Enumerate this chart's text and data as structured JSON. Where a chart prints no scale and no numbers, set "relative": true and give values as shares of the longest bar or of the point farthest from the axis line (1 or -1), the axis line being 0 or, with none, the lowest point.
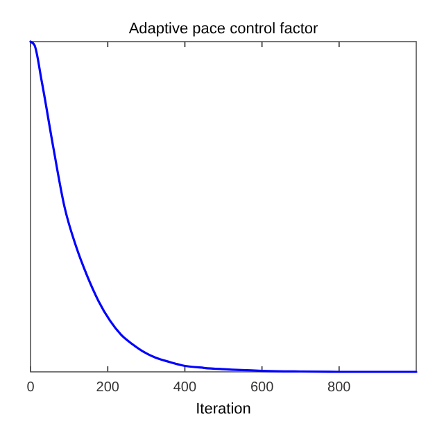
{
  "chart_data": {
    "type": "line",
    "title": "Adaptive pace control factor",
    "xlabel": "Iteration",
    "relative": true,
    "xlim": [
      0,
      1000
    ],
    "xticks": [
      0,
      200,
      400,
      600,
      800
    ],
    "series": [
      {
        "color": "#0000ff",
        "x": [
          0,
          10,
          29,
          59,
          88,
          118,
          147,
          176,
          206,
          235,
          265,
          294,
          324,
          360,
          392,
          450,
          500,
          600,
          700,
          800,
          900,
          1000
        ],
        "values": [
          1,
          0.99,
          0.88,
          0.68,
          0.5,
          0.38,
          0.29,
          0.215,
          0.155,
          0.112,
          0.083,
          0.06,
          0.043,
          0.03,
          0.02,
          0.012,
          0.008,
          0.003,
          0.001,
          0,
          0,
          0
        ]
      }
    ],
    "grid": false
  }
}
